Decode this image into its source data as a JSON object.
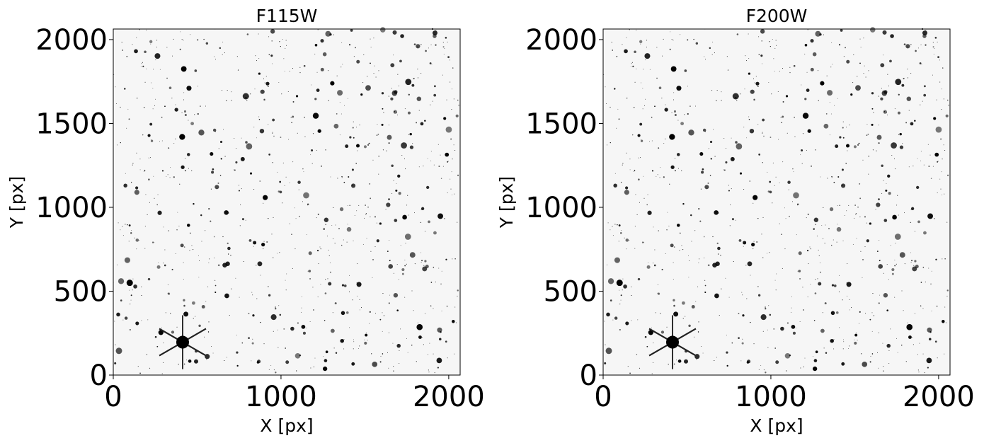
{
  "chart_data": [
    {
      "type": "image",
      "title": "F115W",
      "xlabel": "X [px]",
      "ylabel": "Y [px]",
      "xlim": [
        0,
        2068
      ],
      "ylim": [
        0,
        2063
      ],
      "xticks": [
        0,
        1000,
        2000
      ],
      "yticks": [
        0,
        500,
        1000,
        1500,
        2000
      ]
    },
    {
      "type": "image",
      "title": "F200W",
      "xlabel": "X [px]",
      "ylabel": "Y [px]",
      "xlim": [
        0,
        2068
      ],
      "ylim": [
        0,
        2063
      ],
      "xticks": [
        0,
        1000,
        2000
      ],
      "yticks": [
        0,
        500,
        1000,
        1500,
        2000
      ]
    }
  ]
}
